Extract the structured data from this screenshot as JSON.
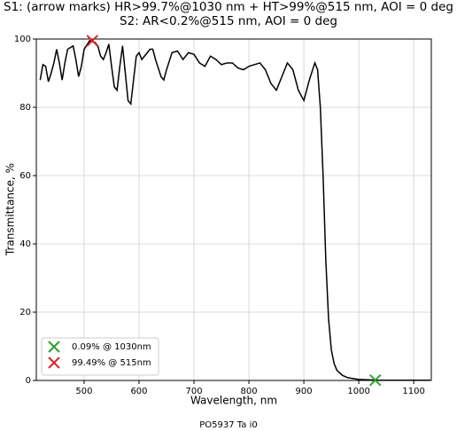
{
  "chart_data": {
    "type": "line",
    "title": "S1: (arrow marks) HR>99.7%@1030 nm + HT>99%@515 nm, AOI = 0 deg",
    "subtitle": "S2: AR<0.2%@515 nm, AOI = 0 deg",
    "x_label": "Wavelength, nm",
    "y_label": "Transmittance, %",
    "caption": "PO5937 Ta i0",
    "xlim": [
      413,
      1132
    ],
    "ylim": [
      0,
      100
    ],
    "xticks": [
      500,
      600,
      700,
      800,
      900,
      1000,
      1100
    ],
    "yticks": [
      0,
      20,
      40,
      60,
      80,
      100
    ],
    "grid": true,
    "legend": "lower left",
    "x": [
      420,
      425,
      430,
      435,
      440,
      445,
      450,
      455,
      460,
      465,
      470,
      480,
      485,
      490,
      495,
      500,
      510,
      520,
      525,
      530,
      535,
      540,
      545,
      550,
      555,
      560,
      565,
      570,
      575,
      580,
      585,
      590,
      595,
      600,
      605,
      610,
      620,
      625,
      630,
      640,
      645,
      650,
      660,
      670,
      680,
      690,
      700,
      710,
      720,
      730,
      740,
      750,
      760,
      770,
      780,
      790,
      800,
      820,
      830,
      840,
      850,
      860,
      870,
      880,
      890,
      900,
      910,
      920,
      925,
      930,
      935,
      940,
      945,
      950,
      955,
      960,
      970,
      980,
      1000,
      1030,
      1130
    ],
    "series": [
      {
        "color": "#000000",
        "values": [
          88,
          92.5,
          92,
          87.5,
          90,
          93,
          97,
          93,
          88,
          93,
          97,
          98,
          94,
          89,
          92,
          97,
          99.5,
          99,
          98,
          95,
          94,
          96,
          98.5,
          92,
          86,
          85,
          92,
          98,
          90,
          82,
          81,
          88,
          95,
          96,
          94,
          95,
          97,
          97,
          94,
          89,
          88,
          91,
          96,
          96.5,
          94,
          96,
          95.5,
          93,
          92,
          95,
          94,
          92.5,
          93,
          93,
          91.5,
          91,
          92,
          93,
          91,
          87,
          85,
          89,
          93,
          91,
          85,
          82,
          88,
          93,
          91,
          80,
          60,
          35,
          18,
          9,
          5,
          3,
          1.5,
          0.8,
          0.3,
          0.09,
          0.05
        ]
      }
    ],
    "markers": [
      {
        "name": "0.09% @ 1030nm",
        "color": "#2ca02c",
        "x": 1030,
        "y": 0.09
      },
      {
        "name": "99.49% @ 515nm",
        "color": "#d62728",
        "x": 515,
        "y": 99.49
      }
    ]
  }
}
